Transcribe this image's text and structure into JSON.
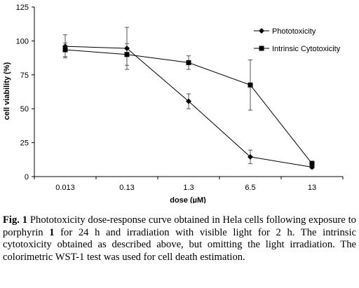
{
  "chart_data": {
    "type": "line",
    "categories": [
      "0.013",
      "0.13",
      "1.3",
      "6.5",
      "13"
    ],
    "xlabel": "dose (µM)",
    "ylabel": "cell viability (%)",
    "ylim": [
      0,
      125
    ],
    "yticks": [
      "0",
      "25",
      "50",
      "75",
      "100",
      "125"
    ],
    "grid": false,
    "legend_position": "top-right",
    "series": [
      {
        "name": "Phototoxicity",
        "marker": "diamond",
        "values": [
          96,
          94.5,
          55.5,
          14.5,
          7
        ],
        "errors": [
          8.5,
          15.5,
          5.5,
          5,
          1
        ]
      },
      {
        "name": "Intrinsic Cytotoxicity",
        "marker": "square",
        "values": [
          93.5,
          90,
          84,
          67.5,
          9.5
        ],
        "errors": [
          5,
          8,
          5,
          18.5,
          2
        ]
      }
    ]
  },
  "caption": {
    "label": "Fig. 1",
    "text_before": " Phototoxicity dose-response curve obtained in Hela cells following exposure to porphyrin ",
    "compound": "1",
    "text_after": " for 24 h and irradiation with visible light for 2 h. The intrinsic cytotoxicity obtained as described above, but omitting the light irradiation. The colorimetric WST-1 test was used for cell death estimation."
  }
}
